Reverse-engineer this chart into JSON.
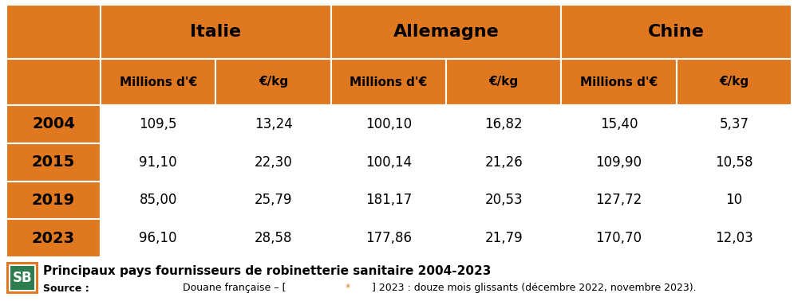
{
  "orange": "#E07820",
  "white": "#FFFFFF",
  "black": "#000000",
  "countries": [
    "Italie",
    "Allemagne",
    "Chine"
  ],
  "sub_headers": [
    "Millions d'€",
    "€/kg",
    "Millions d'€",
    "€/kg",
    "Millions d'€",
    "€/kg"
  ],
  "years": [
    "2004",
    "2015",
    "2019",
    "2023"
  ],
  "data": [
    [
      "109,5",
      "13,24",
      "100,10",
      "16,82",
      "15,40",
      "5,37"
    ],
    [
      "91,10",
      "22,30",
      "100,14",
      "21,26",
      "109,90",
      "10,58"
    ],
    [
      "85,00",
      "25,79",
      "181,17",
      "20,53",
      "127,72",
      "10"
    ],
    [
      "96,10",
      "28,58",
      "177,86",
      "21,79",
      "170,70",
      "12,03"
    ]
  ],
  "title": "Principaux pays fournisseurs de robinetterie sanitaire 2004-2023",
  "source_bold": "Source :",
  "source_rest": " Douane française – [",
  "source_star": "*",
  "source_end": "] 2023 : douze mois glissants (décembre 2022, novembre 2023).",
  "logo_orange": "#E07820",
  "logo_green": "#2E7D4F",
  "fig_w": 10.0,
  "fig_h": 3.78,
  "dpi": 100
}
